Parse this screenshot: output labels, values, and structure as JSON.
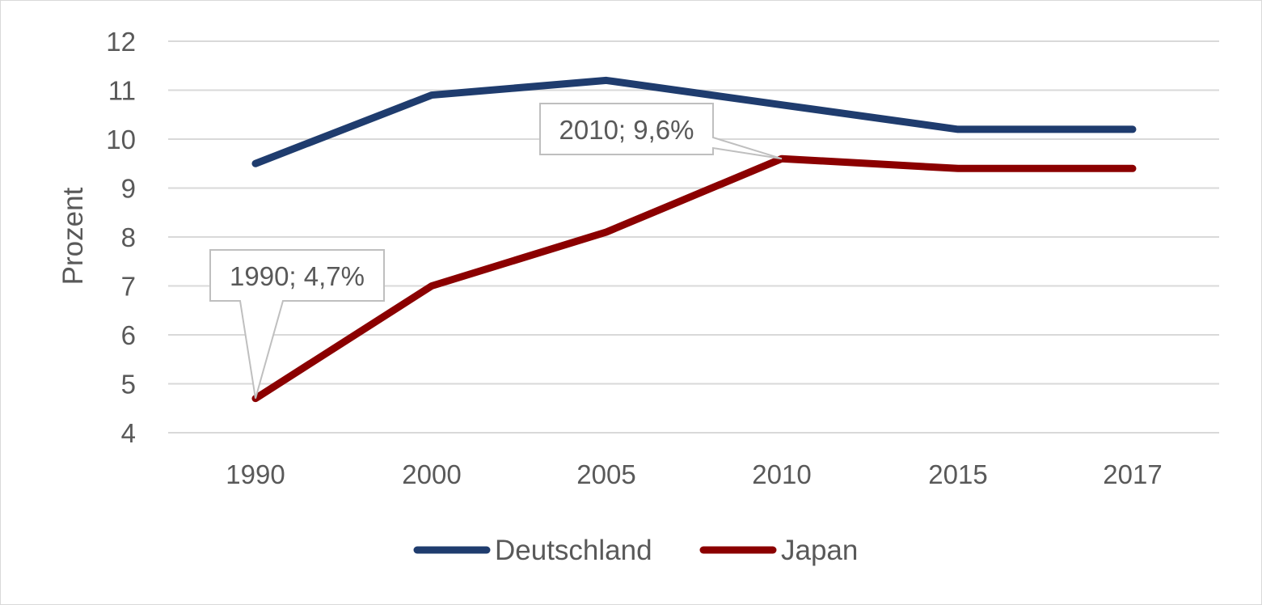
{
  "chart_data": {
    "type": "line",
    "categories": [
      "1990",
      "2000",
      "2005",
      "2010",
      "2015",
      "2017"
    ],
    "y_ticks": [
      "4",
      "5",
      "6",
      "7",
      "8",
      "9",
      "10",
      "11",
      "12"
    ],
    "ylim": [
      4,
      12
    ],
    "ylabel": "Prozent",
    "xlabel": "",
    "grid": true,
    "legend_position": "bottom",
    "series": [
      {
        "name": "Deutschland",
        "color": "#1f3c6e",
        "values": [
          9.5,
          10.9,
          11.2,
          10.7,
          10.2,
          10.2
        ]
      },
      {
        "name": "Japan",
        "color": "#8b0000",
        "values": [
          4.7,
          7.0,
          8.1,
          9.6,
          9.4,
          9.4
        ]
      }
    ],
    "annotations": [
      {
        "text": "1990; 4,7%",
        "series": 1,
        "index": 0
      },
      {
        "text": "2010; 9,6%",
        "series": 1,
        "index": 3
      }
    ]
  }
}
